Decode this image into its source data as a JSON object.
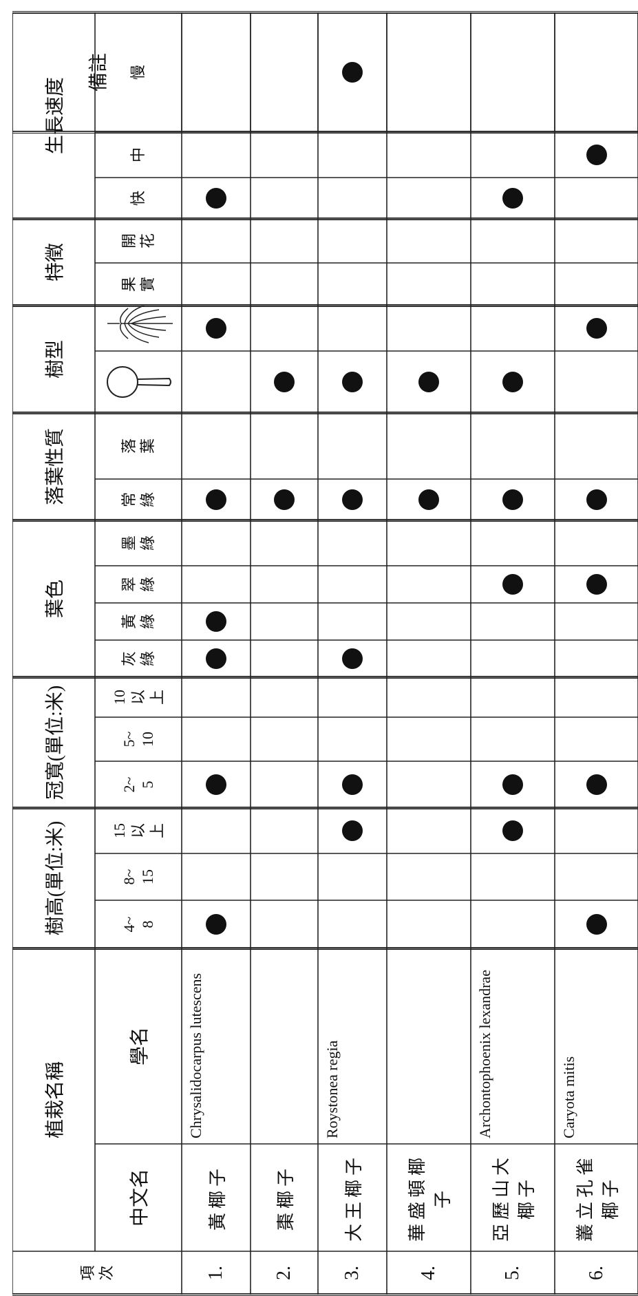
{
  "header": {
    "item": "項次",
    "plant_name": "植栽名稱",
    "chinese_name": "中文名",
    "scientific_name": "學名",
    "remarks": "備註",
    "groups": [
      {
        "title": "樹高(單位:米)",
        "columns": [
          "4~8",
          "8~15",
          "15以上"
        ]
      },
      {
        "title": "冠寬(單位:米)",
        "columns": [
          "2~5",
          "5~10",
          "10以上"
        ]
      },
      {
        "title": "葉色",
        "columns": [
          "灰綠",
          "黃綠",
          "翠綠",
          "墨綠"
        ]
      },
      {
        "title": "落葉性質",
        "columns": [
          "常綠",
          "落葉"
        ]
      },
      {
        "title": "樹型",
        "columns": [
          null,
          null
        ]
      },
      {
        "title": "特徵",
        "columns": [
          "果實",
          "開花"
        ]
      },
      {
        "title": "生長速度",
        "columns": [
          "快",
          "中",
          "慢"
        ]
      }
    ]
  },
  "rows": [
    {
      "item": "1.",
      "chinese_name": "黃椰子",
      "scientific_name": "Chrysalidocarpus lutescens",
      "checks": [
        1,
        0,
        0,
        1,
        0,
        0,
        1,
        1,
        0,
        0,
        1,
        0,
        0,
        1,
        0,
        0,
        1,
        0,
        0
      ]
    },
    {
      "item": "2.",
      "chinese_name": "棗椰子",
      "scientific_name": null,
      "checks": [
        0,
        0,
        0,
        0,
        0,
        0,
        0,
        0,
        0,
        0,
        1,
        0,
        1,
        0,
        0,
        0,
        0,
        0,
        0
      ]
    },
    {
      "item": "3.",
      "chinese_name": "大王椰子",
      "scientific_name": "Roystonea regia",
      "checks": [
        0,
        0,
        1,
        1,
        0,
        0,
        1,
        0,
        0,
        0,
        1,
        0,
        1,
        0,
        0,
        0,
        0,
        0,
        1
      ]
    },
    {
      "item": "4.",
      "chinese_name": "華盛頓椰子",
      "scientific_name": null,
      "checks": [
        0,
        0,
        0,
        0,
        0,
        0,
        0,
        0,
        0,
        0,
        1,
        0,
        1,
        0,
        0,
        0,
        0,
        0,
        0
      ]
    },
    {
      "item": "5.",
      "chinese_name": "亞歷山大椰子",
      "scientific_name": "Archontophoenix lexandrae",
      "checks": [
        0,
        0,
        1,
        1,
        0,
        0,
        0,
        0,
        1,
        0,
        1,
        0,
        1,
        0,
        0,
        0,
        1,
        0,
        0
      ]
    },
    {
      "item": "6.",
      "chinese_name": "叢立孔雀椰子",
      "scientific_name": "Caryota mitis",
      "checks": [
        1,
        0,
        0,
        1,
        0,
        0,
        0,
        0,
        1,
        0,
        1,
        0,
        0,
        1,
        0,
        0,
        0,
        1,
        0
      ]
    }
  ]
}
